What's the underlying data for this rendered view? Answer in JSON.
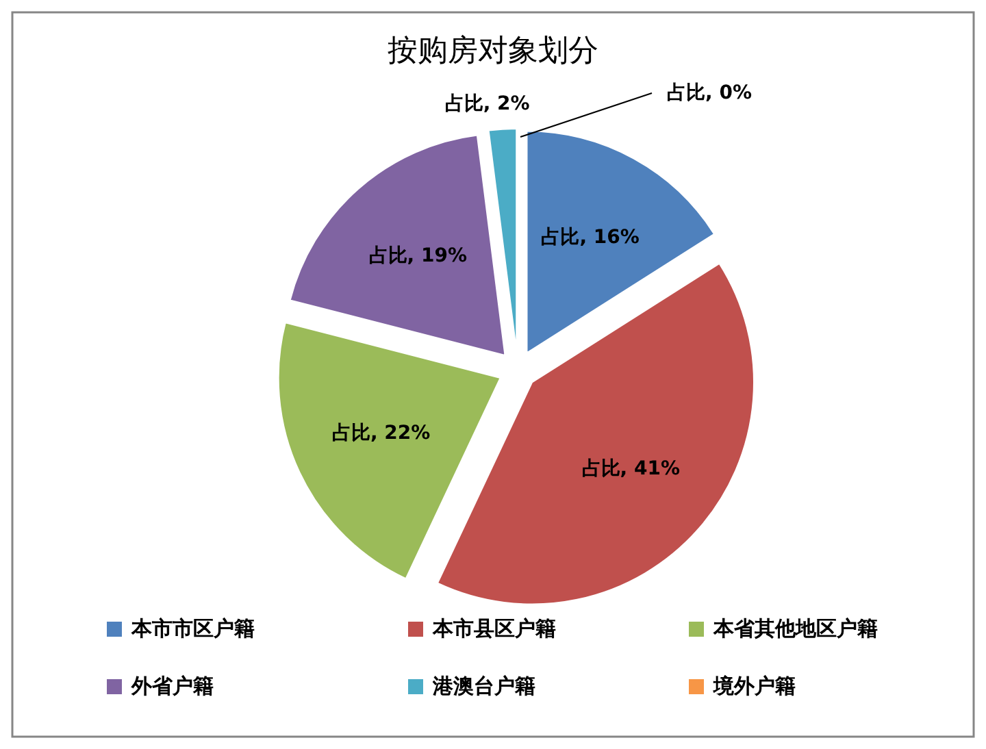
{
  "chart_data": {
    "type": "pie",
    "title": "按购房对象划分",
    "categories": [
      "本市市区户籍",
      "本市县区户籍",
      "本省其他地区户籍",
      "外省户籍",
      "港澳台户籍",
      "境外户籍"
    ],
    "values": [
      16,
      41,
      22,
      19,
      2,
      0
    ],
    "colors": [
      "#4f81bd",
      "#c0504d",
      "#9bbb59",
      "#8064a2",
      "#4bacc6",
      "#f79646"
    ],
    "value_labels": [
      "占比, 16%",
      "占比, 41%",
      "占比, 22%",
      "占比, 19%",
      "占比, 2%",
      "占比, 0%"
    ],
    "legend": "bottom"
  }
}
